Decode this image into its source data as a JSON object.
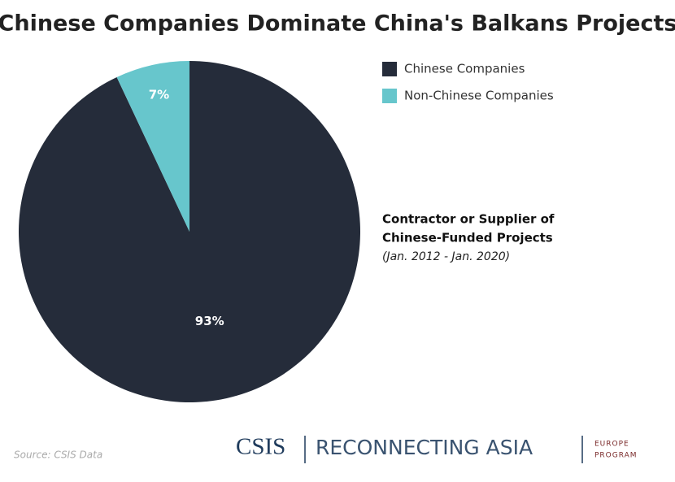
{
  "chart_data": {
    "type": "pie",
    "title": "Chinese Companies Dominate China's Balkans Projects",
    "categories": [
      "Chinese Companies",
      "Non-Chinese Companies"
    ],
    "values": [
      93,
      7
    ],
    "value_labels": [
      "93%",
      "7%"
    ],
    "colors": [
      "#252c3a",
      "#67c6cc"
    ],
    "legend": "top-right",
    "annotation": [
      "Contractor or Supplier of",
      "Chinese-Funded Projects"
    ],
    "subtitle": "(Jan. 2012 - Jan. 2020)",
    "source": "Source: CSIS Data"
  },
  "branding": {
    "org": "CSIS",
    "project": "RECONNECTING ASIA",
    "program": [
      "EUROPE",
      "PROGRAM"
    ]
  }
}
